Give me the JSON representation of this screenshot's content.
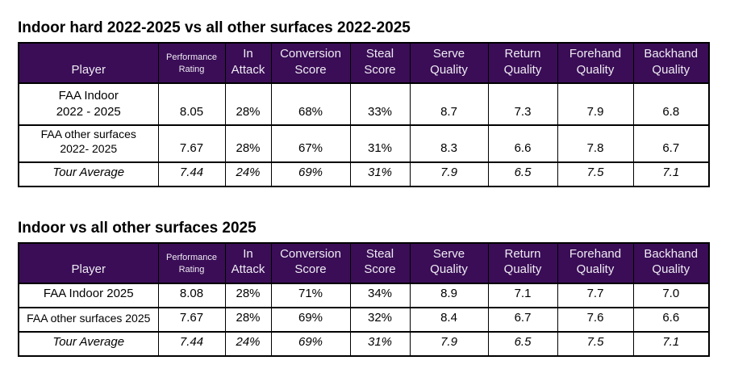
{
  "colors": {
    "header_bg": "#3A0D56",
    "header_text": "#EFEBF3",
    "border": "#000000",
    "title_text": "#000000"
  },
  "tables": [
    {
      "title": "Indoor hard 2022-2025 vs all other surfaces 2022-2025",
      "header": [
        "Player",
        "Performance\nRating",
        "In\nAttack",
        "Conversion\nScore",
        "Steal\nScore",
        "Serve\nQuality",
        "Return\nQuality",
        "Forehand\nQuality",
        "Backhand\nQuality"
      ],
      "rows": [
        {
          "cells": [
            "FAA Indoor\n2022 - 2025",
            "8.05",
            "28%",
            "68%",
            "33%",
            "8.7",
            "7.3",
            "7.9",
            "6.8"
          ]
        },
        {
          "cells": [
            "FAA other surfaces\n2022- 2025",
            "7.67",
            "28%",
            "67%",
            "31%",
            "8.3",
            "6.6",
            "7.8",
            "6.7"
          ]
        },
        {
          "cells": [
            "Tour Average",
            "7.44",
            "24%",
            "69%",
            "31%",
            "7.9",
            "6.5",
            "7.5",
            "7.1"
          ],
          "italic": true
        }
      ]
    },
    {
      "title": "Indoor vs all other surfaces 2025",
      "header": [
        "Player",
        "Performance\nRating",
        "In\nAttack",
        "Conversion\nScore",
        "Steal\nScore",
        "Serve\nQuality",
        "Return\nQuality",
        "Forehand\nQuality",
        "Backhand\nQuality"
      ],
      "rows": [
        {
          "cells": [
            "FAA Indoor 2025",
            "8.08",
            "28%",
            "71%",
            "34%",
            "8.9",
            "7.1",
            "7.7",
            "7.0"
          ]
        },
        {
          "cells": [
            "FAA other surfaces 2025",
            "7.67",
            "28%",
            "69%",
            "32%",
            "8.4",
            "6.7",
            "7.6",
            "6.6"
          ]
        },
        {
          "cells": [
            "Tour Average",
            "7.44",
            "24%",
            "69%",
            "31%",
            "7.9",
            "6.5",
            "7.5",
            "7.1"
          ],
          "italic": true
        }
      ]
    }
  ]
}
